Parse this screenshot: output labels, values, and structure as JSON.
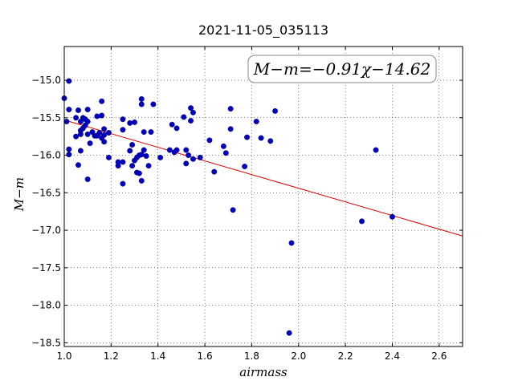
{
  "chart_data": {
    "type": "scatter",
    "title": "2021-11-05_035113",
    "xlabel": "airmass",
    "ylabel": "M−m",
    "xlim": [
      1.0,
      2.7
    ],
    "ylim": [
      -18.55,
      -14.55
    ],
    "y_inverted": true,
    "grid": true,
    "x_ticks": [
      1.0,
      1.2,
      1.4,
      1.6,
      1.8,
      2.0,
      2.2,
      2.4,
      2.6
    ],
    "x_tick_labels": [
      "1.0",
      "1.2",
      "1.4",
      "1.6",
      "1.8",
      "2.0",
      "2.2",
      "2.4",
      "2.6"
    ],
    "y_ticks": [
      -15.0,
      -15.5,
      -16.0,
      -16.5,
      -17.0,
      -17.5,
      -18.0,
      -18.5
    ],
    "y_tick_labels": [
      "−15.0",
      "−15.5",
      "−16.0",
      "−16.5",
      "−17.0",
      "−17.5",
      "−18.0",
      "−18.5"
    ],
    "annotation": "M−m=−0.91χ−14.62",
    "annotation_position": "top-right",
    "fit": {
      "slope": -0.91,
      "intercept": -14.62,
      "color": "#e00000"
    },
    "marker_color": "#0000c0",
    "points": [
      {
        "x": 1.0,
        "y": -15.24
      },
      {
        "x": 1.01,
        "y": -15.55
      },
      {
        "x": 1.02,
        "y": -15.01
      },
      {
        "x": 1.02,
        "y": -15.39
      },
      {
        "x": 1.02,
        "y": -15.92
      },
      {
        "x": 1.02,
        "y": -15.99
      },
      {
        "x": 1.05,
        "y": -15.5
      },
      {
        "x": 1.05,
        "y": -15.75
      },
      {
        "x": 1.06,
        "y": -16.13
      },
      {
        "x": 1.06,
        "y": -15.4
      },
      {
        "x": 1.07,
        "y": -15.55
      },
      {
        "x": 1.07,
        "y": -15.72
      },
      {
        "x": 1.07,
        "y": -15.67
      },
      {
        "x": 1.08,
        "y": -15.5
      },
      {
        "x": 1.07,
        "y": -15.94
      },
      {
        "x": 1.08,
        "y": -15.64
      },
      {
        "x": 1.09,
        "y": -15.52
      },
      {
        "x": 1.09,
        "y": -15.6
      },
      {
        "x": 1.1,
        "y": -15.55
      },
      {
        "x": 1.1,
        "y": -15.39
      },
      {
        "x": 1.1,
        "y": -15.72
      },
      {
        "x": 1.1,
        "y": -16.32
      },
      {
        "x": 1.11,
        "y": -15.84
      },
      {
        "x": 1.12,
        "y": -15.69
      },
      {
        "x": 1.13,
        "y": -15.74
      },
      {
        "x": 1.14,
        "y": -15.74
      },
      {
        "x": 1.14,
        "y": -15.48
      },
      {
        "x": 1.15,
        "y": -15.7
      },
      {
        "x": 1.16,
        "y": -15.28
      },
      {
        "x": 1.16,
        "y": -15.47
      },
      {
        "x": 1.16,
        "y": -15.77
      },
      {
        "x": 1.17,
        "y": -15.65
      },
      {
        "x": 1.17,
        "y": -15.73
      },
      {
        "x": 1.17,
        "y": -15.82
      },
      {
        "x": 1.19,
        "y": -15.7
      },
      {
        "x": 1.19,
        "y": -16.03
      },
      {
        "x": 1.23,
        "y": -16.14
      },
      {
        "x": 1.23,
        "y": -16.09
      },
      {
        "x": 1.25,
        "y": -16.09
      },
      {
        "x": 1.25,
        "y": -15.52
      },
      {
        "x": 1.25,
        "y": -15.66
      },
      {
        "x": 1.25,
        "y": -16.38
      },
      {
        "x": 1.28,
        "y": -15.57
      },
      {
        "x": 1.28,
        "y": -15.94
      },
      {
        "x": 1.29,
        "y": -15.86
      },
      {
        "x": 1.29,
        "y": -16.14
      },
      {
        "x": 1.3,
        "y": -15.56
      },
      {
        "x": 1.3,
        "y": -16.07
      },
      {
        "x": 1.31,
        "y": -16.23
      },
      {
        "x": 1.31,
        "y": -16.03
      },
      {
        "x": 1.32,
        "y": -16.0
      },
      {
        "x": 1.32,
        "y": -16.24
      },
      {
        "x": 1.33,
        "y": -15.99
      },
      {
        "x": 1.33,
        "y": -15.25
      },
      {
        "x": 1.33,
        "y": -15.32
      },
      {
        "x": 1.33,
        "y": -16.34
      },
      {
        "x": 1.34,
        "y": -15.69
      },
      {
        "x": 1.34,
        "y": -15.93
      },
      {
        "x": 1.35,
        "y": -16.01
      },
      {
        "x": 1.36,
        "y": -16.14
      },
      {
        "x": 1.37,
        "y": -15.69
      },
      {
        "x": 1.38,
        "y": -15.32
      },
      {
        "x": 1.41,
        "y": -16.03
      },
      {
        "x": 1.45,
        "y": -15.93
      },
      {
        "x": 1.46,
        "y": -15.59
      },
      {
        "x": 1.47,
        "y": -15.96
      },
      {
        "x": 1.48,
        "y": -15.64
      },
      {
        "x": 1.48,
        "y": -15.93
      },
      {
        "x": 1.51,
        "y": -15.49
      },
      {
        "x": 1.52,
        "y": -15.93
      },
      {
        "x": 1.52,
        "y": -16.11
      },
      {
        "x": 1.53,
        "y": -16.0
      },
      {
        "x": 1.54,
        "y": -15.37
      },
      {
        "x": 1.54,
        "y": -15.54
      },
      {
        "x": 1.55,
        "y": -15.43
      },
      {
        "x": 1.55,
        "y": -16.05
      },
      {
        "x": 1.58,
        "y": -16.03
      },
      {
        "x": 1.62,
        "y": -15.8
      },
      {
        "x": 1.64,
        "y": -16.22
      },
      {
        "x": 1.68,
        "y": -15.88
      },
      {
        "x": 1.69,
        "y": -15.97
      },
      {
        "x": 1.71,
        "y": -15.38
      },
      {
        "x": 1.71,
        "y": -15.65
      },
      {
        "x": 1.72,
        "y": -16.73
      },
      {
        "x": 1.77,
        "y": -16.15
      },
      {
        "x": 1.78,
        "y": -15.76
      },
      {
        "x": 1.82,
        "y": -15.55
      },
      {
        "x": 1.84,
        "y": -15.77
      },
      {
        "x": 1.88,
        "y": -15.81
      },
      {
        "x": 1.9,
        "y": -15.41
      },
      {
        "x": 1.96,
        "y": -18.37
      },
      {
        "x": 1.97,
        "y": -17.17
      },
      {
        "x": 2.27,
        "y": -16.88
      },
      {
        "x": 2.33,
        "y": -15.93
      },
      {
        "x": 2.4,
        "y": -16.82
      }
    ]
  }
}
